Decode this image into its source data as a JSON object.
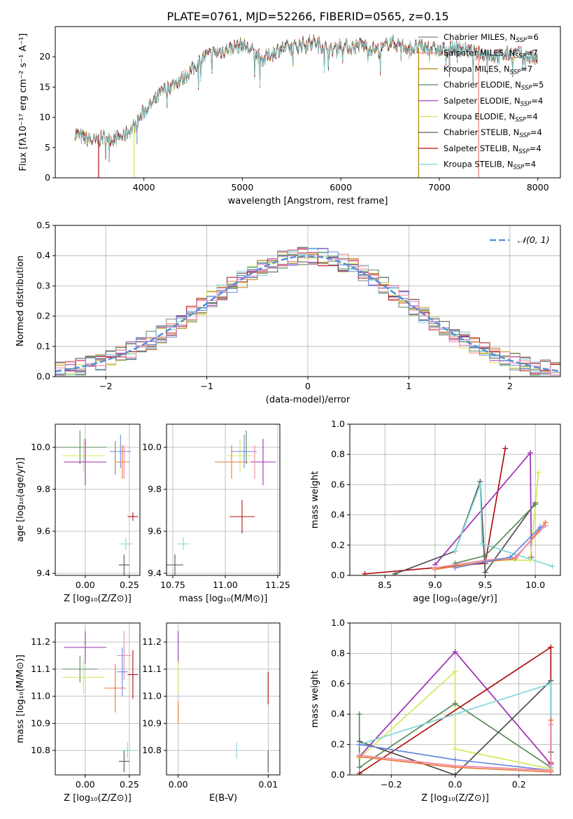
{
  "figure": {
    "title": "PLATE=0761, MJD=52266, FIBERID=0565, z=0.15"
  },
  "colors": {
    "Chabrier MILES": "#808080",
    "Salpeter MILES": "#f08070",
    "Kroupa MILES": "#b8860b",
    "Chabrier ELODIE": "#5a8a5a",
    "Salpeter ELODIE": "#9b30b0",
    "Kroupa ELODIE": "#d4e85a",
    "Chabrier STELIB": "#505050",
    "Salpeter STELIB": "#b01010",
    "Kroupa STELIB": "#80d8d8",
    "pink": "#ee88aa",
    "blue": "#6688dd",
    "orange": "#ee7733",
    "normal": "#5b8fd6"
  },
  "chart_data": [
    {
      "type": "line",
      "id": "spectrum",
      "title": "PLATE=0761, MJD=52266, FIBERID=0565, z=0.15",
      "xlabel": "wavelength [Angstrom, rest frame]",
      "ylabel": "Flux [fλ10⁻¹⁷ erg cm⁻² s⁻¹ A⁻¹]",
      "xlim": [
        3100,
        8230
      ],
      "ylim": [
        0,
        25
      ],
      "xticks": [
        "4000",
        "5000",
        "6000",
        "7000",
        "8000"
      ],
      "yticks": [
        "0",
        "5",
        "10",
        "15",
        "20"
      ],
      "legend_position": "upper right",
      "legend": [
        {
          "label": "Chabrier MILES, N",
          "sub": "SSP",
          "tail": "=6",
          "color": "#808080"
        },
        {
          "label": "Salpeter MILES, N",
          "sub": "SSP",
          "tail": "=7",
          "color": "#f08070"
        },
        {
          "label": "Kroupa MILES, N",
          "sub": "SSP",
          "tail": "=7",
          "color": "#b8860b"
        },
        {
          "label": "Chabrier ELODIE, N",
          "sub": "SSP",
          "tail": "=5",
          "color": "#5a8a5a"
        },
        {
          "label": "Salpeter ELODIE, N",
          "sub": "SSP",
          "tail": "=4",
          "color": "#9b30b0"
        },
        {
          "label": "Kroupa ELODIE, N",
          "sub": "SSP",
          "tail": "=4",
          "color": "#d4e85a"
        },
        {
          "label": "Chabrier STELIB, N",
          "sub": "SSP",
          "tail": "=4",
          "color": "#505050"
        },
        {
          "label": "Salpeter STELIB, N",
          "sub": "SSP",
          "tail": "=4",
          "color": "#b01010"
        },
        {
          "label": "Kroupa STELIB, N",
          "sub": "SSP",
          "tail": "=4",
          "color": "#80d8d8"
        }
      ],
      "continuum": [
        [
          3300,
          7.4
        ],
        [
          3400,
          6.5
        ],
        [
          3500,
          6.0
        ],
        [
          3600,
          6.8
        ],
        [
          3700,
          6.5
        ],
        [
          3800,
          7.0
        ],
        [
          3900,
          8.5
        ],
        [
          4000,
          11.0
        ],
        [
          4100,
          12.5
        ],
        [
          4200,
          14.5
        ],
        [
          4300,
          15.5
        ],
        [
          4400,
          16.5
        ],
        [
          4500,
          18.0
        ],
        [
          4600,
          20.0
        ],
        [
          4700,
          20.5
        ],
        [
          4800,
          21.0
        ],
        [
          4900,
          21.5
        ],
        [
          5000,
          22.0
        ],
        [
          5100,
          21.0
        ],
        [
          5200,
          19.5
        ],
        [
          5300,
          20.5
        ],
        [
          5400,
          21.5
        ],
        [
          5500,
          21.5
        ],
        [
          5600,
          22.0
        ],
        [
          5700,
          22.5
        ],
        [
          5800,
          22.0
        ],
        [
          5900,
          21.0
        ],
        [
          6000,
          22.0
        ],
        [
          6100,
          21.5
        ],
        [
          6200,
          22.0
        ],
        [
          6300,
          21.5
        ],
        [
          6400,
          21.0
        ],
        [
          6500,
          22.5
        ],
        [
          6600,
          22.0
        ],
        [
          6700,
          21.5
        ],
        [
          6800,
          21.5
        ],
        [
          6900,
          21.5
        ],
        [
          7000,
          21.0
        ],
        [
          7100,
          21.5
        ],
        [
          7200,
          21.5
        ],
        [
          7300,
          21.0
        ],
        [
          7400,
          20.5
        ],
        [
          7500,
          20.5
        ],
        [
          7600,
          20.0
        ],
        [
          7700,
          20.5
        ],
        [
          7800,
          20.5
        ],
        [
          7900,
          20.0
        ],
        [
          8000,
          19.5
        ]
      ],
      "model_dropouts": [
        {
          "color": "#b01010",
          "x": 3540
        },
        {
          "color": "#d4e85a",
          "x": 3900
        },
        {
          "color": "#d4e85a",
          "x": 6790
        },
        {
          "color": "#f08070",
          "x": 7400
        },
        {
          "color": "#b8860b",
          "x": 6790
        }
      ]
    },
    {
      "type": "histogram",
      "id": "residuals",
      "xlabel": "(data-model)/error",
      "ylabel": "Normed distribution",
      "xlim": [
        -2.5,
        2.5
      ],
      "ylim": [
        0,
        0.5
      ],
      "xticks": [
        "−2",
        "−1",
        "0",
        "1",
        "2"
      ],
      "yticks": [
        "0.0",
        "0.1",
        "0.2",
        "0.3",
        "0.4",
        "0.5"
      ],
      "grid": true,
      "legend_position": "upper right",
      "legend_label": "𝒩(0, 1)",
      "bin_width": 0.1,
      "bin_start": -2.5
    },
    {
      "type": "errorbar",
      "id": "age-vs-Z",
      "xlabel": "Z [log₁₀(Z/Z⊙)]",
      "ylabel": "age  [log₁₀(age/yr)]",
      "xlim": [
        -0.17,
        0.31
      ],
      "ylim": [
        9.39,
        10.11
      ],
      "xticks": [
        "0.00",
        "0.25"
      ],
      "yticks": [
        "9.4",
        "9.6",
        "9.8",
        "10.0"
      ],
      "points": [
        {
          "series": "Chabrier ELODIE",
          "x": -0.03,
          "y": 10.0,
          "xerr": 0.15,
          "yerr": 0.08
        },
        {
          "series": "Kroupa ELODIE",
          "x": -0.01,
          "y": 9.96,
          "xerr": 0.12,
          "yerr": 0.08
        },
        {
          "series": "Kroupa MILES",
          "x": 0.0,
          "y": 9.99,
          "xerr": 0.0,
          "yerr": 0.05
        },
        {
          "series": "Salpeter ELODIE",
          "x": 0.0,
          "y": 9.93,
          "xerr": 0.12,
          "yerr": 0.11
        },
        {
          "series": "Chabrier MILES",
          "x": 0.17,
          "y": 9.95,
          "xerr": 0.0,
          "yerr": 0.08
        },
        {
          "series": "blue",
          "x": 0.2,
          "y": 9.98,
          "xerr": 0.06,
          "yerr": 0.08
        },
        {
          "series": "pink",
          "x": 0.22,
          "y": 9.93,
          "xerr": 0.0,
          "yerr": 0.08
        },
        {
          "series": "orange",
          "x": 0.21,
          "y": 9.93,
          "xerr": 0.04,
          "yerr": 0.08
        },
        {
          "series": "Salpeter STELIB",
          "x": 0.27,
          "y": 9.67,
          "xerr": 0.03,
          "yerr": 0.02
        },
        {
          "series": "Kroupa STELIB",
          "x": 0.23,
          "y": 9.54,
          "xerr": 0.04,
          "yerr": 0.03
        },
        {
          "series": "Chabrier STELIB",
          "x": 0.22,
          "y": 9.44,
          "xerr": 0.03,
          "yerr": 0.05
        }
      ]
    },
    {
      "type": "errorbar",
      "id": "age-vs-mass",
      "xlabel": "mass [log₁₀(M/M⊙)]",
      "ylabel": "",
      "xlim": [
        10.72,
        11.26
      ],
      "ylim": [
        9.39,
        10.11
      ],
      "xticks": [
        "10.75",
        "11.00",
        "11.25"
      ],
      "yticks": [
        "9.4",
        "9.6",
        "9.8",
        "10.0"
      ],
      "points": [
        {
          "series": "Chabrier ELODIE",
          "x": 11.1,
          "y": 10.0,
          "xerr": 0.0,
          "yerr": 0.08
        },
        {
          "series": "Kroupa ELODIE",
          "x": 11.07,
          "y": 9.96,
          "xerr": 0.06,
          "yerr": 0.08
        },
        {
          "series": "Salpeter ELODIE",
          "x": 11.18,
          "y": 9.93,
          "xerr": 0.06,
          "yerr": 0.11
        },
        {
          "series": "blue",
          "x": 11.09,
          "y": 9.98,
          "xerr": 0.06,
          "yerr": 0.08
        },
        {
          "series": "pink",
          "x": 11.14,
          "y": 9.93,
          "xerr": 0.0,
          "yerr": 0.08
        },
        {
          "series": "orange",
          "x": 11.03,
          "y": 9.93,
          "xerr": 0.08,
          "yerr": 0.08
        },
        {
          "series": "Salpeter STELIB",
          "x": 11.08,
          "y": 9.67,
          "xerr": 0.06,
          "yerr": 0.08
        },
        {
          "series": "Kroupa STELIB",
          "x": 10.8,
          "y": 9.54,
          "xerr": 0.03,
          "yerr": 0.03
        },
        {
          "series": "Chabrier STELIB",
          "x": 10.76,
          "y": 9.44,
          "xerr": 0.04,
          "yerr": 0.05
        }
      ]
    },
    {
      "type": "line",
      "id": "mass-weight-vs-age",
      "xlabel": "age  [log₁₀(age/yr)]",
      "ylabel": "mass weight",
      "xlim": [
        8.15,
        10.25
      ],
      "ylim": [
        0,
        1
      ],
      "xticks": [
        "8.5",
        "9.0",
        "9.5",
        "10.0"
      ],
      "yticks": [
        "0.0",
        "0.2",
        "0.4",
        "0.6",
        "0.8",
        "1.0"
      ],
      "grid": true,
      "series": [
        {
          "name": "Salpeter STELIB",
          "points": [
            [
              8.3,
              0.01
            ],
            [
              9.5,
              0.08
            ],
            [
              9.7,
              0.84
            ]
          ]
        },
        {
          "name": "Salpeter ELODIE",
          "points": [
            [
              9.0,
              0.07
            ],
            [
              9.95,
              0.81
            ],
            [
              9.96,
              0.12
            ]
          ]
        },
        {
          "name": "Chabrier STELIB",
          "points": [
            [
              8.6,
              0.01
            ],
            [
              9.2,
              0.16
            ],
            [
              9.45,
              0.62
            ],
            [
              9.5,
              0.02
            ],
            [
              10.0,
              0.48
            ]
          ]
        },
        {
          "name": "Kroupa STELIB",
          "points": [
            [
              9.2,
              0.16
            ],
            [
              9.45,
              0.6
            ],
            [
              9.47,
              0.21
            ],
            [
              10.17,
              0.06
            ]
          ]
        },
        {
          "name": "Kroupa ELODIE",
          "points": [
            [
              9.0,
              0.05
            ],
            [
              9.5,
              0.1
            ],
            [
              9.95,
              0.1
            ],
            [
              10.03,
              0.68
            ]
          ]
        },
        {
          "name": "Chabrier ELODIE",
          "points": [
            [
              9.2,
              0.08
            ],
            [
              9.5,
              0.13
            ],
            [
              10.0,
              0.47
            ]
          ]
        },
        {
          "name": "orange",
          "points": [
            [
              9.0,
              0.04
            ],
            [
              9.5,
              0.09
            ],
            [
              9.8,
              0.11
            ],
            [
              10.1,
              0.35
            ]
          ]
        },
        {
          "name": "pink",
          "points": [
            [
              9.0,
              0.05
            ],
            [
              9.5,
              0.1
            ],
            [
              9.8,
              0.12
            ],
            [
              10.1,
              0.33
            ]
          ]
        },
        {
          "name": "blue",
          "points": [
            [
              9.2,
              0.05
            ],
            [
              9.5,
              0.09
            ],
            [
              9.75,
              0.12
            ],
            [
              10.05,
              0.32
            ]
          ]
        }
      ]
    },
    {
      "type": "errorbar",
      "id": "mass-vs-Z",
      "xlabel": "Z [log₁₀(Z/Z⊙)]",
      "ylabel": "mass [log₁₀(M/M⊙)]",
      "xlim": [
        -0.17,
        0.31
      ],
      "ylim": [
        10.71,
        11.27
      ],
      "xticks": [
        "0.00",
        "0.25"
      ],
      "yticks": [
        "10.8",
        "10.9",
        "11.0",
        "11.1",
        "11.2"
      ],
      "points": [
        {
          "series": "Salpeter ELODIE",
          "x": 0.0,
          "y": 11.18,
          "xerr": 0.12,
          "yerr": 0.06
        },
        {
          "series": "pink",
          "x": 0.22,
          "y": 11.15,
          "xerr": 0.04,
          "yerr": 0.09
        },
        {
          "series": "Chabrier ELODIE",
          "x": -0.03,
          "y": 11.1,
          "xerr": 0.1,
          "yerr": 0.05
        },
        {
          "series": "Kroupa ELODIE",
          "x": -0.01,
          "y": 11.07,
          "xerr": 0.12,
          "yerr": 0.06
        },
        {
          "series": "blue",
          "x": 0.21,
          "y": 11.09,
          "xerr": 0.03,
          "yerr": 0.09
        },
        {
          "series": "Salpeter STELIB",
          "x": 0.27,
          "y": 11.08,
          "xerr": 0.03,
          "yerr": 0.09
        },
        {
          "series": "orange",
          "x": 0.17,
          "y": 11.03,
          "xerr": 0.06,
          "yerr": 0.09
        },
        {
          "series": "Kroupa STELIB",
          "x": 0.24,
          "y": 10.8,
          "xerr": 0.05,
          "yerr": 0.03
        },
        {
          "series": "Chabrier STELIB",
          "x": 0.22,
          "y": 10.76,
          "xerr": 0.03,
          "yerr": 0.04
        }
      ]
    },
    {
      "type": "errorbar",
      "id": "mass-vs-ebv",
      "xlabel": "E(B-V)",
      "ylabel": "",
      "xlim": [
        -0.0013,
        0.0113
      ],
      "ylim": [
        10.71,
        11.27
      ],
      "xticks": [
        "0.00",
        "0.01"
      ],
      "yticks": [
        "10.8",
        "10.9",
        "11.0",
        "11.1",
        "11.2"
      ],
      "points": [
        {
          "series": "Salpeter ELODIE",
          "x": 0.0,
          "y": 11.18,
          "xerr": 0.0,
          "yerr": 0.06
        },
        {
          "series": "Kroupa ELODIE",
          "x": 0.0,
          "y": 11.07,
          "xerr": 0.0,
          "yerr": 0.06
        },
        {
          "series": "orange",
          "x": 0.0,
          "y": 10.94,
          "xerr": 0.0,
          "yerr": 0.04
        },
        {
          "series": "Salpeter STELIB",
          "x": 0.01,
          "y": 11.03,
          "xerr": 0.0,
          "yerr": 0.06
        },
        {
          "series": "Kroupa STELIB",
          "x": 0.0065,
          "y": 10.8,
          "xerr": 0.0,
          "yerr": 0.03
        },
        {
          "series": "Chabrier STELIB",
          "x": 0.01,
          "y": 10.76,
          "xerr": 0.0,
          "yerr": 0.04
        }
      ]
    },
    {
      "type": "line",
      "id": "mass-weight-vs-Z",
      "xlabel": "Z [log₁₀(Z/Z⊙)]",
      "ylabel": "mass weight",
      "xlim": [
        -0.33,
        0.33
      ],
      "ylim": [
        0,
        1
      ],
      "xticks": [
        "−0.2",
        "0.0",
        "0.2"
      ],
      "yticks": [
        "0.0",
        "0.2",
        "0.4",
        "0.6",
        "0.8",
        "1.0"
      ],
      "grid": true,
      "series": [
        {
          "name": "Salpeter ELODIE",
          "points": [
            [
              -0.3,
              0.12
            ],
            [
              0.0,
              0.81
            ],
            [
              0.3,
              0.07
            ]
          ]
        },
        {
          "name": "Kroupa ELODIE",
          "points": [
            [
              -0.3,
              0.11
            ],
            [
              0.0,
              0.68
            ],
            [
              0.0,
              0.17
            ],
            [
              0.3,
              0.04
            ]
          ]
        },
        {
          "name": "Chabrier ELODIE",
          "points": [
            [
              -0.3,
              0.4
            ],
            [
              -0.3,
              0.05
            ],
            [
              0.0,
              0.47
            ],
            [
              0.3,
              0.05
            ]
          ]
        },
        {
          "name": "Salpeter STELIB",
          "points": [
            [
              -0.3,
              0.01
            ],
            [
              0.3,
              0.84
            ],
            [
              0.3,
              0.08
            ]
          ]
        },
        {
          "name": "Chabrier STELIB",
          "points": [
            [
              -0.3,
              0.22
            ],
            [
              0.0,
              0.0
            ],
            [
              0.3,
              0.62
            ],
            [
              0.3,
              0.15
            ]
          ]
        },
        {
          "name": "Kroupa STELIB",
          "points": [
            [
              -0.3,
              0.2
            ],
            [
              0.3,
              0.6
            ],
            [
              0.3,
              0.05
            ]
          ]
        },
        {
          "name": "blue",
          "points": [
            [
              -0.3,
              0.2
            ],
            [
              0.0,
              0.1
            ],
            [
              0.3,
              0.03
            ]
          ]
        },
        {
          "name": "orange",
          "points": [
            [
              -0.3,
              0.12
            ],
            [
              0.0,
              0.05
            ],
            [
              0.3,
              0.02
            ],
            [
              0.3,
              0.36
            ]
          ]
        },
        {
          "name": "pink",
          "points": [
            [
              -0.3,
              0.13
            ],
            [
              0.0,
              0.06
            ],
            [
              0.3,
              0.03
            ],
            [
              0.3,
              0.33
            ]
          ]
        }
      ]
    }
  ]
}
